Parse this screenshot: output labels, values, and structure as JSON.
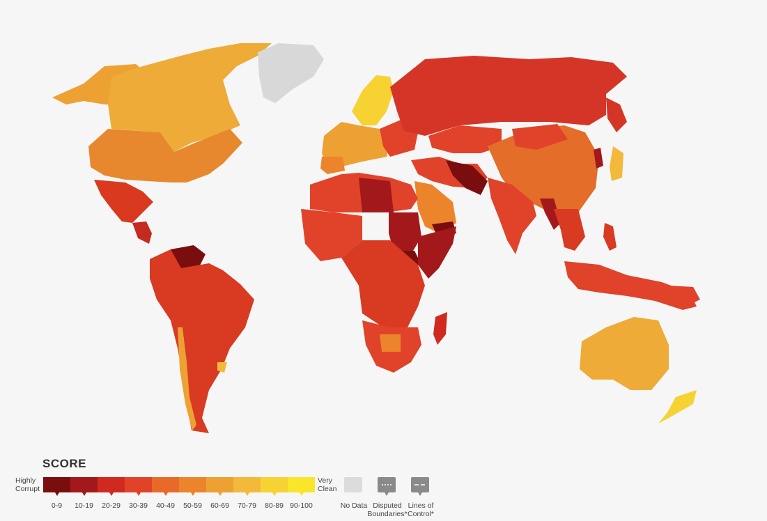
{
  "legend": {
    "title": "SCORE",
    "low_label": [
      "Highly",
      "Corrupt"
    ],
    "high_label": [
      "Very",
      "Clean"
    ],
    "bins": [
      {
        "label": "0-9",
        "color": "#7a0e0e"
      },
      {
        "label": "10-19",
        "color": "#a3191b"
      },
      {
        "label": "20-29",
        "color": "#d02a20"
      },
      {
        "label": "30-39",
        "color": "#e0432a"
      },
      {
        "label": "40-49",
        "color": "#e8692a"
      },
      {
        "label": "50-59",
        "color": "#ec842c"
      },
      {
        "label": "60-69",
        "color": "#eea133"
      },
      {
        "label": "70-79",
        "color": "#f2b93a"
      },
      {
        "label": "80-89",
        "color": "#f6d233"
      },
      {
        "label": "90-100",
        "color": "#f9e62b"
      }
    ],
    "no_data": {
      "label": "No Data",
      "color": "#dcdcdc"
    },
    "disputed": {
      "label": [
        "Disputed",
        "Boundaries*"
      ],
      "color": "#8a8a8a"
    },
    "lines_of_control": {
      "label": [
        "Lines of",
        "Control*"
      ],
      "color": "#8a8a8a"
    }
  },
  "map": {
    "background": "#f6f6f6",
    "no_data_color": "#d8d8d8"
  }
}
